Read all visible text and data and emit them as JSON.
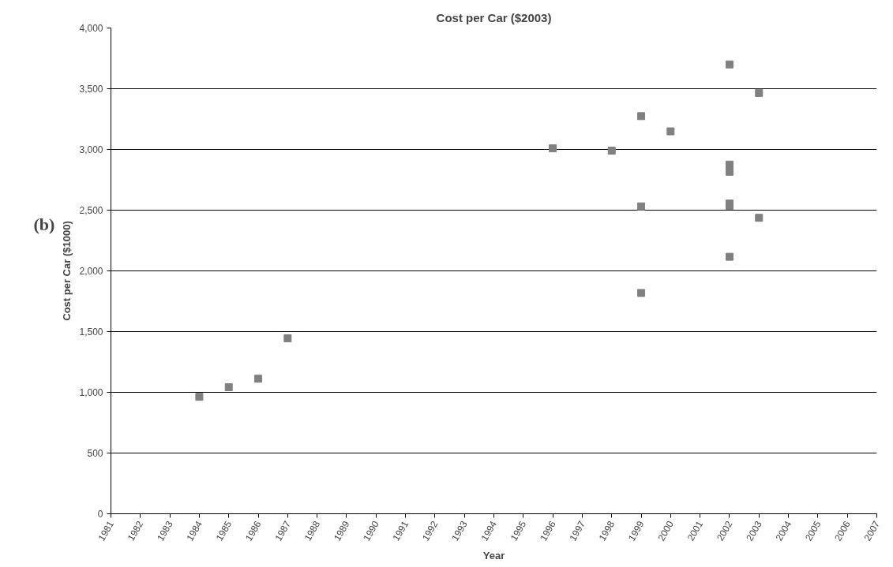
{
  "chart_data": {
    "type": "scatter",
    "title": "Cost per Car ($2003)",
    "xlabel": "Year",
    "ylabel": "Cost per Car ($1000)",
    "annotations": [
      "(b)"
    ],
    "x": [
      1984,
      1985,
      1986,
      1987,
      1996,
      1998,
      1999,
      1999,
      1999,
      2000,
      2002,
      2002,
      2002,
      2002,
      2002,
      2002,
      2003,
      2003
    ],
    "series": [
      {
        "color": "#808080",
        "values": [
          963,
          1042,
          1112,
          1445,
          3009,
          2990,
          3274,
          2531,
          1818,
          3149,
          3700,
          2875,
          2816,
          2555,
          2535,
          2116,
          3465,
          2437
        ]
      }
    ],
    "xlim": [
      1981,
      2007
    ],
    "xticks": [
      1981,
      1982,
      1983,
      1984,
      1985,
      1986,
      1987,
      1988,
      1989,
      1990,
      1991,
      1992,
      1993,
      1994,
      1995,
      1996,
      1997,
      1998,
      1999,
      2000,
      2001,
      2002,
      2003,
      2004,
      2005,
      2006,
      2007
    ],
    "ylim": [
      0,
      4000
    ],
    "yticks": [
      {
        "value": 0,
        "label": "0"
      },
      {
        "value": 500,
        "label": "500"
      },
      {
        "value": 1000,
        "label": "1,000"
      },
      {
        "value": 1500,
        "label": "1,500"
      },
      {
        "value": 2000,
        "label": "2,000"
      },
      {
        "value": 2500,
        "label": "2,500"
      },
      {
        "value": 3000,
        "label": "3,000"
      },
      {
        "value": 3500,
        "label": "3,500"
      },
      {
        "value": 4000,
        "label": "4,000"
      }
    ],
    "grid": "y",
    "marker": "square"
  }
}
